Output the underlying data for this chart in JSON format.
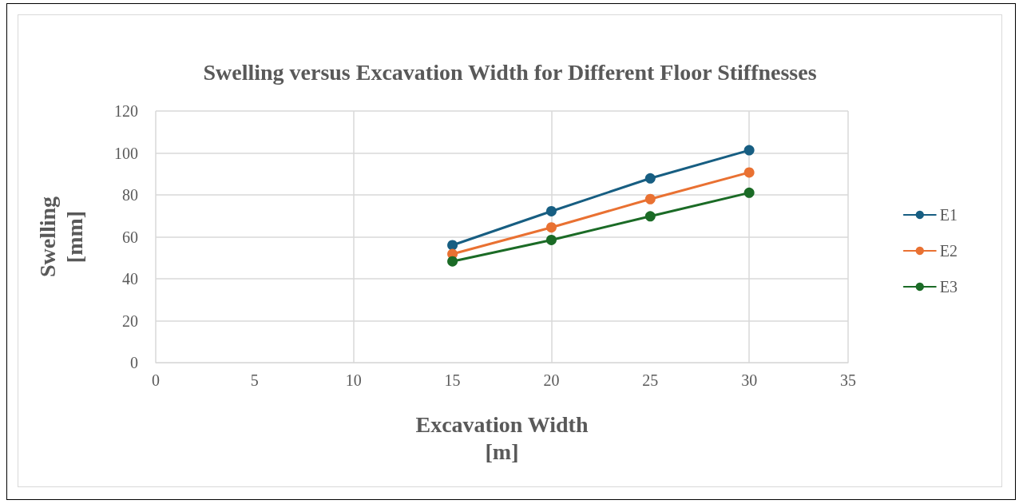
{
  "chart_data": {
    "type": "line",
    "title": "Swelling versus Excavation Width for Different Floor Stiffnesses",
    "xlabel": "Excavation Width\n[m]",
    "ylabel": "Swelling\n[mm]",
    "x": [
      15,
      20,
      25,
      30
    ],
    "series": [
      {
        "name": "E1",
        "color": "#175e82",
        "values": [
          56,
          72.2,
          87.9,
          101.3
        ]
      },
      {
        "name": "E2",
        "color": "#e97132",
        "values": [
          51.8,
          64.5,
          78,
          90.7
        ]
      },
      {
        "name": "E3",
        "color": "#1b6b26",
        "values": [
          48.3,
          58.5,
          69.8,
          81
        ]
      }
    ],
    "xlim": [
      0,
      35
    ],
    "xticks": [
      0,
      5,
      10,
      15,
      20,
      25,
      30,
      35
    ],
    "ylim": [
      0,
      120
    ],
    "yticks": [
      0,
      20,
      40,
      60,
      80,
      100,
      120
    ],
    "grid": true,
    "legend": "right",
    "marker": "circle",
    "line_style": "solid"
  }
}
